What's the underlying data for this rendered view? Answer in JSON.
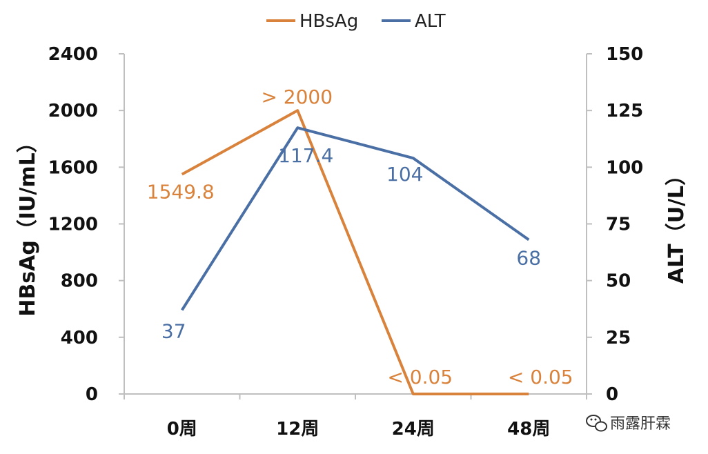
{
  "chart_data": {
    "type": "line",
    "categories": [
      "0周",
      "12周",
      "24周",
      "48周"
    ],
    "series": [
      {
        "name": "HBsAg",
        "axis": "left",
        "color": "#D9823B",
        "values": [
          1549.8,
          2000,
          0.05,
          0.05
        ],
        "labels": [
          "1549.8",
          "> 2000",
          "< 0.05",
          "< 0.05"
        ]
      },
      {
        "name": "ALT",
        "axis": "right",
        "color": "#4A6FA5",
        "values": [
          37,
          117.4,
          104,
          68
        ],
        "labels": [
          "37",
          "117.4",
          "104",
          "68"
        ]
      }
    ],
    "ylabel_left": "HBsAg（IU/mL）",
    "ylabel_right": "ALT（U/L）",
    "ylim_left": [
      0,
      2400
    ],
    "ylim_right": [
      0,
      150
    ],
    "yticks_left": [
      "0",
      "400",
      "800",
      "1200",
      "1600",
      "2000",
      "2400"
    ],
    "yticks_right": [
      "0",
      "25",
      "50",
      "75",
      "100",
      "125",
      "150"
    ],
    "grid": false,
    "legend_position": "top"
  },
  "watermark": {
    "text": "雨露肝霖",
    "icon": "wechat-icon"
  }
}
